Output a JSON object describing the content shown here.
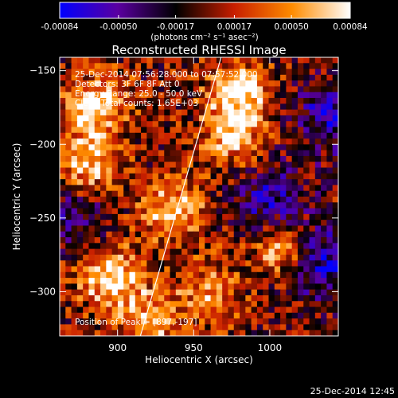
{
  "colorbar": {
    "tick_labels": [
      "-0.00084",
      "-0.00050",
      "-0.00017",
      "0.00017",
      "0.00050",
      "0.00084"
    ],
    "tick_values": [
      -0.00084,
      -0.0005,
      -0.00017,
      0.00017,
      0.0005,
      0.00084
    ],
    "range": [
      -0.00084,
      0.00084
    ],
    "unit_label": "(photons cm⁻² s⁻¹ asec⁻²)",
    "colors": [
      "#0000ff",
      "#5a00a0",
      "#000000",
      "#c81e00",
      "#ff8c00",
      "#ffffff"
    ]
  },
  "chart_data": {
    "type": "heatmap",
    "title": "Reconstructed RHESSI Image",
    "xlabel": "Heliocentric X (arcsec)",
    "ylabel": "Heliocentric Y (arcsec)",
    "xlim": [
      862,
      1045
    ],
    "ylim": [
      -330,
      -141
    ],
    "x_ticks": [
      900,
      950,
      1000
    ],
    "x_tick_labels": [
      "900",
      "950",
      "1000"
    ],
    "y_ticks": [
      -150,
      -200,
      -250,
      -300
    ],
    "y_tick_labels": [
      "−150",
      "−200",
      "−250",
      "−300"
    ],
    "annotations": [
      "25-Dec-2014 07:56:28.000 to 07:57:52.000",
      "Detectors: 3F 6F 8F Att 0",
      "Energy Range: 25.0 - 50.0 keV",
      "Clean    Total counts: 1.65E+03"
    ],
    "peak_label": "Position of Peak = [897,-197]",
    "peak_position": [
      897,
      -197
    ],
    "limb_line": [
      [
        915,
        -330
      ],
      [
        968,
        -141
      ]
    ],
    "hotspots": [
      {
        "x": 885,
        "y": -175,
        "value": 0.0008
      },
      {
        "x": 880,
        "y": -215,
        "value": 0.0007
      },
      {
        "x": 895,
        "y": -290,
        "value": 0.0008
      },
      {
        "x": 935,
        "y": -245,
        "value": 0.0007
      },
      {
        "x": 980,
        "y": -165,
        "value": 0.0008
      },
      {
        "x": 975,
        "y": -195,
        "value": 0.0006
      },
      {
        "x": 1008,
        "y": -270,
        "value": 0.0007
      },
      {
        "x": 960,
        "y": -300,
        "value": 0.0005
      },
      {
        "x": 920,
        "y": -320,
        "value": 0.0006
      }
    ],
    "coldspots": [
      {
        "x": 1000,
        "y": -240,
        "value": -0.0006
      },
      {
        "x": 1035,
        "y": -280,
        "value": -0.0007
      },
      {
        "x": 1040,
        "y": -180,
        "value": -0.0006
      },
      {
        "x": 870,
        "y": -245,
        "value": -0.0004
      }
    ]
  },
  "footer": {
    "timestamp": "25-Dec-2014 12:45"
  }
}
